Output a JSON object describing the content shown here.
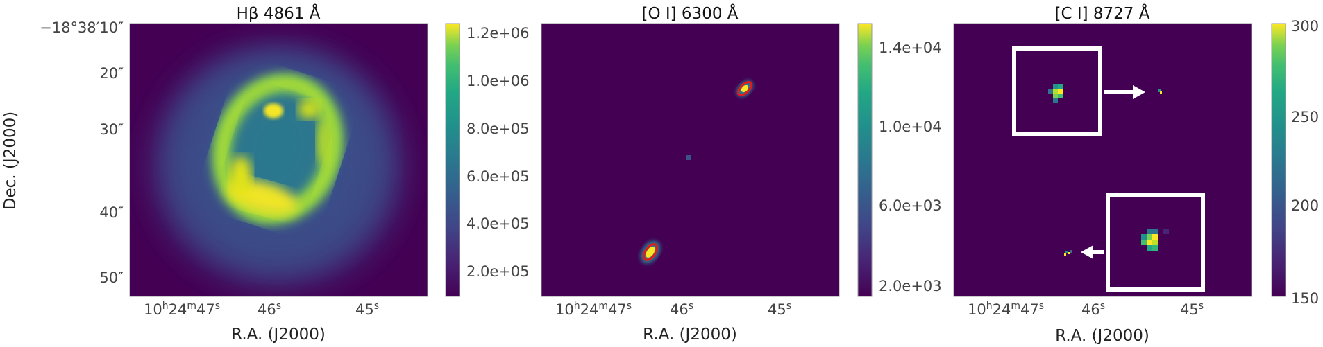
{
  "chart_data": [
    {
      "type": "heatmap",
      "title": "Hβ 4861 Å",
      "xlabel": "R.A. (J2000)",
      "ylabel": "Dec. (J2000)",
      "x_ticks": [
        "10h24m47s",
        "46s",
        "45s"
      ],
      "y_ticks": [
        "−18°38′10″",
        "20″",
        "30″",
        "40″",
        "50″"
      ],
      "colorbar": {
        "ticks": [
          "2.0e+05",
          "4.0e+05",
          "6.0e+05",
          "8.0e+05",
          "1.0e+06",
          "1.2e+06"
        ],
        "min": 100000,
        "max": 1250000
      },
      "colormap": "viridis"
    },
    {
      "type": "heatmap",
      "title": "[O I] 6300 Å",
      "xlabel": "R.A. (J2000)",
      "x_ticks": [
        "10h24m47s",
        "46s",
        "45s"
      ],
      "colorbar": {
        "ticks": [
          "2.0e+03",
          "6.0e+03",
          "1.0e+04",
          "1.4e+04"
        ],
        "min": 1000,
        "max": 15500
      },
      "colormap": "viridis"
    },
    {
      "type": "heatmap",
      "title": "[C I] 8727 Å",
      "xlabel": "R.A. (J2000)",
      "x_ticks": [
        "10h24m47s",
        "46s",
        "45s"
      ],
      "colorbar": {
        "ticks": [
          "150",
          "200",
          "250",
          "300"
        ],
        "min": 145,
        "max": 305
      },
      "colormap": "viridis"
    }
  ],
  "text": {
    "p1_title": "Hβ 4861 Å",
    "p2_title": "[O I] 6300 Å",
    "p3_title": "[C I] 8727 Å",
    "ylabel": "Dec. (J2000)",
    "xlabel": "R.A. (J2000)",
    "y_ticks": [
      "−18°38′10″",
      "20″",
      "30″",
      "40″",
      "50″"
    ],
    "x_tick_main": "10",
    "x_tick_h": "h",
    "x_tick_24": "24",
    "x_tick_m": "m",
    "x_tick_47": "47",
    "x_tick_s": "s",
    "x_tick_46": "46",
    "x_tick_45": "45",
    "cb1": [
      "2.0e+05",
      "4.0e+05",
      "6.0e+05",
      "8.0e+05",
      "1.0e+06",
      "1.2e+06"
    ],
    "cb2": [
      "2.0e+03",
      "6.0e+03",
      "1.0e+04",
      "1.4e+04"
    ],
    "cb3": [
      "150",
      "200",
      "250",
      "300"
    ]
  },
  "colors": {
    "background_map": "#440154",
    "viridis_low": "#440154",
    "viridis_high": "#fde725",
    "oi_marker": "#e41a1c",
    "inset_box": "#ffffff"
  }
}
